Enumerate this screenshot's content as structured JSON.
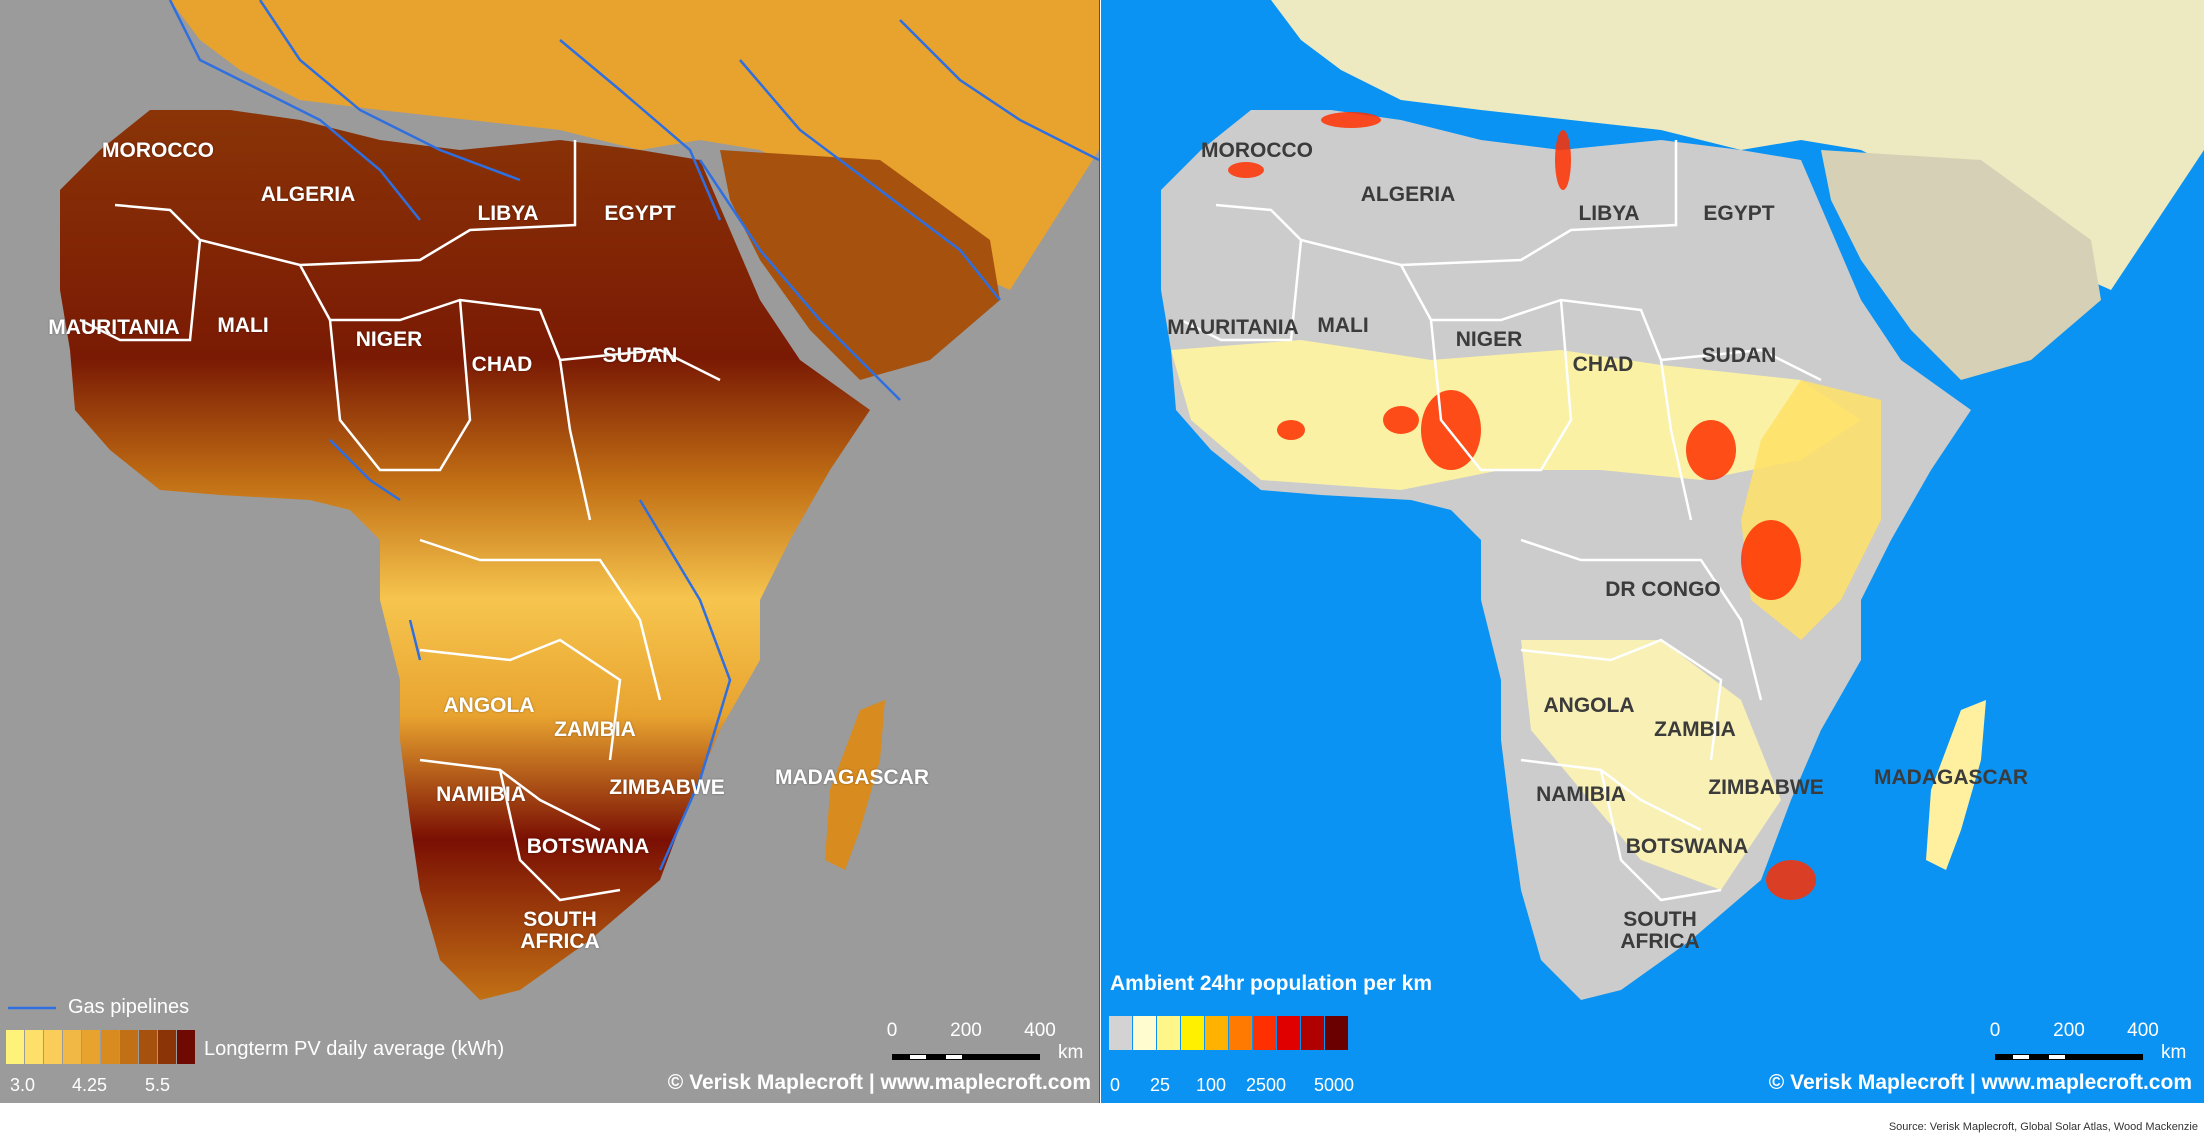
{
  "left_panel": {
    "background": "#9b9b9b",
    "country_labels": [
      "MOROCCO",
      "ALGERIA",
      "LIBYA",
      "EGYPT",
      "MAURITANIA",
      "MALI",
      "NIGER",
      "CHAD",
      "SUDAN",
      "ANGOLA",
      "ZAMBIA",
      "NAMIBIA",
      "ZIMBABWE",
      "MADAGASCAR",
      "BOTSWANA",
      "SOUTH AFRICA"
    ],
    "legend_line_label": "Gas pipelines",
    "pipeline_color": "#2f6fe0",
    "legend_title": "Longterm PV daily average (kWh)",
    "legend_colors": [
      "#fff27a",
      "#fde06a",
      "#f9cd58",
      "#f2b845",
      "#e8a32f",
      "#d88b1e",
      "#c27015",
      "#a6520e",
      "#8a3407",
      "#6e0a02"
    ],
    "legend_ticks": [
      "3.0",
      "4.25",
      "5.5"
    ],
    "scale_ticks": [
      "0",
      "200",
      "400"
    ],
    "scale_unit": "km",
    "copyright": "© Verisk Maplecroft  | www.maplecroft.com"
  },
  "right_panel": {
    "background": "#0a93f3",
    "country_labels": [
      "MOROCCO",
      "ALGERIA",
      "LIBYA",
      "EGYPT",
      "MAURITANIA",
      "MALI",
      "NIGER",
      "CHAD",
      "SUDAN",
      "DR CONGO",
      "ANGOLA",
      "ZAMBIA",
      "NAMIBIA",
      "ZIMBABWE",
      "MADAGASCAR",
      "BOTSWANA",
      "SOUTH AFRICA"
    ],
    "legend_title": "Ambient 24hr population per km",
    "legend_colors": [
      "#d3d3d3",
      "#fffdd0",
      "#fff68a",
      "#fff000",
      "#ffb300",
      "#ff7a00",
      "#ff3000",
      "#e00000",
      "#b10000",
      "#6a0000"
    ],
    "legend_ticks": [
      "0",
      "25",
      "100",
      "2500",
      "5000"
    ],
    "scale_ticks": [
      "0",
      "200",
      "400"
    ],
    "scale_unit": "km",
    "copyright": "© Verisk Maplecroft  | www.maplecroft.com"
  },
  "source": "Source: Verisk Maplecroft, Global Solar Atlas, Wood Mackenzie"
}
